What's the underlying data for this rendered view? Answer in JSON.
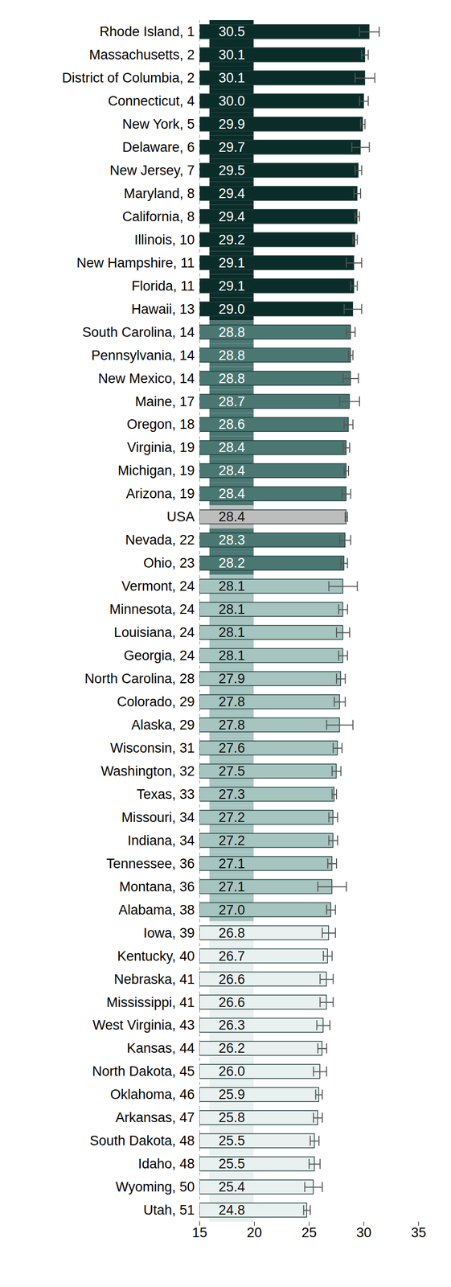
{
  "chart_data": {
    "type": "bar",
    "orientation": "horizontal",
    "data_labels": true,
    "categories": [
      "Rhode Island, 1",
      "Massachusetts, 2",
      "District of Columbia, 2",
      "Connecticut, 4",
      "New York, 5",
      "Delaware, 6",
      "New Jersey, 7",
      "Maryland, 8",
      "California, 8",
      "Illinois, 10",
      "New Hampshire, 11",
      "Florida, 11",
      "Hawaii, 13",
      "South Carolina, 14",
      "Pennsylvania, 14",
      "New Mexico, 14",
      "Maine, 17",
      "Oregon, 18",
      "Virginia, 19",
      "Michigan, 19",
      "Arizona, 19",
      "USA",
      "Nevada, 22",
      "Ohio, 23",
      "Vermont, 24",
      "Minnesota, 24",
      "Louisiana, 24",
      "Georgia, 24",
      "North Carolina, 28",
      "Colorado, 29",
      "Alaska, 29",
      "Wisconsin, 31",
      "Washington, 32",
      "Texas, 33",
      "Missouri, 34",
      "Indiana, 34",
      "Tennessee, 36",
      "Montana, 36",
      "Alabama, 38",
      "Iowa, 39",
      "Kentucky, 40",
      "Nebraska, 41",
      "Mississippi, 41",
      "West Virginia, 43",
      "Kansas, 44",
      "North Dakota, 45",
      "Oklahoma, 46",
      "Arkansas, 47",
      "South Dakota, 48",
      "Idaho, 48",
      "Wyoming, 50",
      "Utah, 51"
    ],
    "values": [
      30.5,
      30.1,
      30.1,
      30.0,
      29.9,
      29.7,
      29.5,
      29.4,
      29.4,
      29.2,
      29.1,
      29.1,
      29.0,
      28.8,
      28.8,
      28.8,
      28.7,
      28.6,
      28.4,
      28.4,
      28.4,
      28.4,
      28.3,
      28.2,
      28.1,
      28.1,
      28.1,
      28.1,
      27.9,
      27.8,
      27.8,
      27.6,
      27.5,
      27.3,
      27.2,
      27.2,
      27.1,
      27.1,
      27.0,
      26.8,
      26.7,
      26.6,
      26.6,
      26.3,
      26.2,
      26.0,
      25.9,
      25.8,
      25.5,
      25.5,
      25.4,
      24.8
    ],
    "value_labels": [
      "30.5",
      "30.1",
      "30.1",
      "30.0",
      "29.9",
      "29.7",
      "29.5",
      "29.4",
      "29.4",
      "29.2",
      "29.1",
      "29.1",
      "29.0",
      "28.8",
      "28.8",
      "28.8",
      "28.7",
      "28.6",
      "28.4",
      "28.4",
      "28.4",
      "28.4",
      "28.3",
      "28.2",
      "28.1",
      "28.1",
      "28.1",
      "28.1",
      "27.9",
      "27.8",
      "27.8",
      "27.6",
      "27.5",
      "27.3",
      "27.2",
      "27.2",
      "27.1",
      "27.1",
      "27.0",
      "26.8",
      "26.7",
      "26.6",
      "26.6",
      "26.3",
      "26.2",
      "26.0",
      "25.9",
      "25.8",
      "25.5",
      "25.5",
      "25.4",
      "24.8"
    ],
    "error": [
      0.9,
      0.3,
      0.9,
      0.4,
      0.2,
      0.8,
      0.3,
      0.3,
      0.2,
      0.2,
      0.7,
      0.3,
      0.8,
      0.4,
      0.2,
      0.7,
      0.9,
      0.4,
      0.3,
      0.2,
      0.4,
      0.1,
      0.5,
      0.3,
      1.3,
      0.4,
      0.6,
      0.4,
      0.4,
      0.5,
      1.2,
      0.4,
      0.4,
      0.2,
      0.4,
      0.4,
      0.4,
      1.3,
      0.4,
      0.6,
      0.4,
      0.6,
      0.6,
      0.6,
      0.4,
      0.6,
      0.3,
      0.4,
      0.4,
      0.5,
      0.8,
      0.3
    ],
    "colors": [
      "#0b2d2a",
      "#0b2d2a",
      "#0b2d2a",
      "#0b2d2a",
      "#0b2d2a",
      "#0b2d2a",
      "#0b2d2a",
      "#0b2d2a",
      "#0b2d2a",
      "#0b2d2a",
      "#0b2d2a",
      "#0b2d2a",
      "#0b2d2a",
      "#4b7773",
      "#4b7773",
      "#4b7773",
      "#4b7773",
      "#4b7773",
      "#4b7773",
      "#4b7773",
      "#4b7773",
      "#bdbdbd",
      "#4b7773",
      "#4b7773",
      "#a6c4c0",
      "#a6c4c0",
      "#a6c4c0",
      "#a6c4c0",
      "#a6c4c0",
      "#a6c4c0",
      "#a6c4c0",
      "#a6c4c0",
      "#a6c4c0",
      "#a6c4c0",
      "#a6c4c0",
      "#a6c4c0",
      "#a6c4c0",
      "#a6c4c0",
      "#a6c4c0",
      "#e9f1f0",
      "#e9f1f0",
      "#e9f1f0",
      "#e9f1f0",
      "#e9f1f0",
      "#e9f1f0",
      "#e9f1f0",
      "#e9f1f0",
      "#e9f1f0",
      "#e9f1f0",
      "#e9f1f0",
      "#e9f1f0",
      "#e9f1f0"
    ],
    "xlim": [
      15,
      35
    ],
    "xticks": [
      15,
      20,
      25,
      30,
      35
    ]
  }
}
